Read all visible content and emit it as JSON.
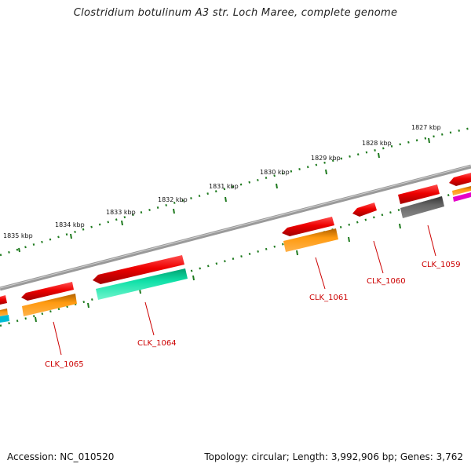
{
  "title": "Clostridium botulinum A3 str. Loch Maree, complete genome",
  "footer": {
    "accession": "Accession: NC_010520",
    "summary": "Topology: circular; Length: 3,992,906 bp; Genes: 3,762"
  },
  "ticks": [
    {
      "label": "1835 kbp"
    },
    {
      "label": "1834 kbp"
    },
    {
      "label": "1833 kbp"
    },
    {
      "label": "1832 kbp"
    },
    {
      "label": "1831 kbp"
    },
    {
      "label": "1830 kbp"
    },
    {
      "label": "1829 kbp"
    },
    {
      "label": "1828 kbp"
    },
    {
      "label": "1827 kbp"
    }
  ],
  "genes": [
    {
      "label": "CLK_1065",
      "color": "#e00000",
      "feature_color": "#ff8c00"
    },
    {
      "label": "CLK_1064",
      "color": "#e00000",
      "feature_color": "#00d89a"
    },
    {
      "label": "CLK_1061",
      "color": "#e00000",
      "feature_color": "#ff8c00"
    },
    {
      "label": "CLK_1060",
      "color": "#e00000",
      "feature_color": null
    },
    {
      "label": "CLK_1059",
      "color": "#e00000",
      "feature_color": "#555555"
    }
  ],
  "colors": {
    "backbone": "#8a8a8a",
    "tick": "#1e7a1e",
    "gene_label": "#cc0000"
  }
}
